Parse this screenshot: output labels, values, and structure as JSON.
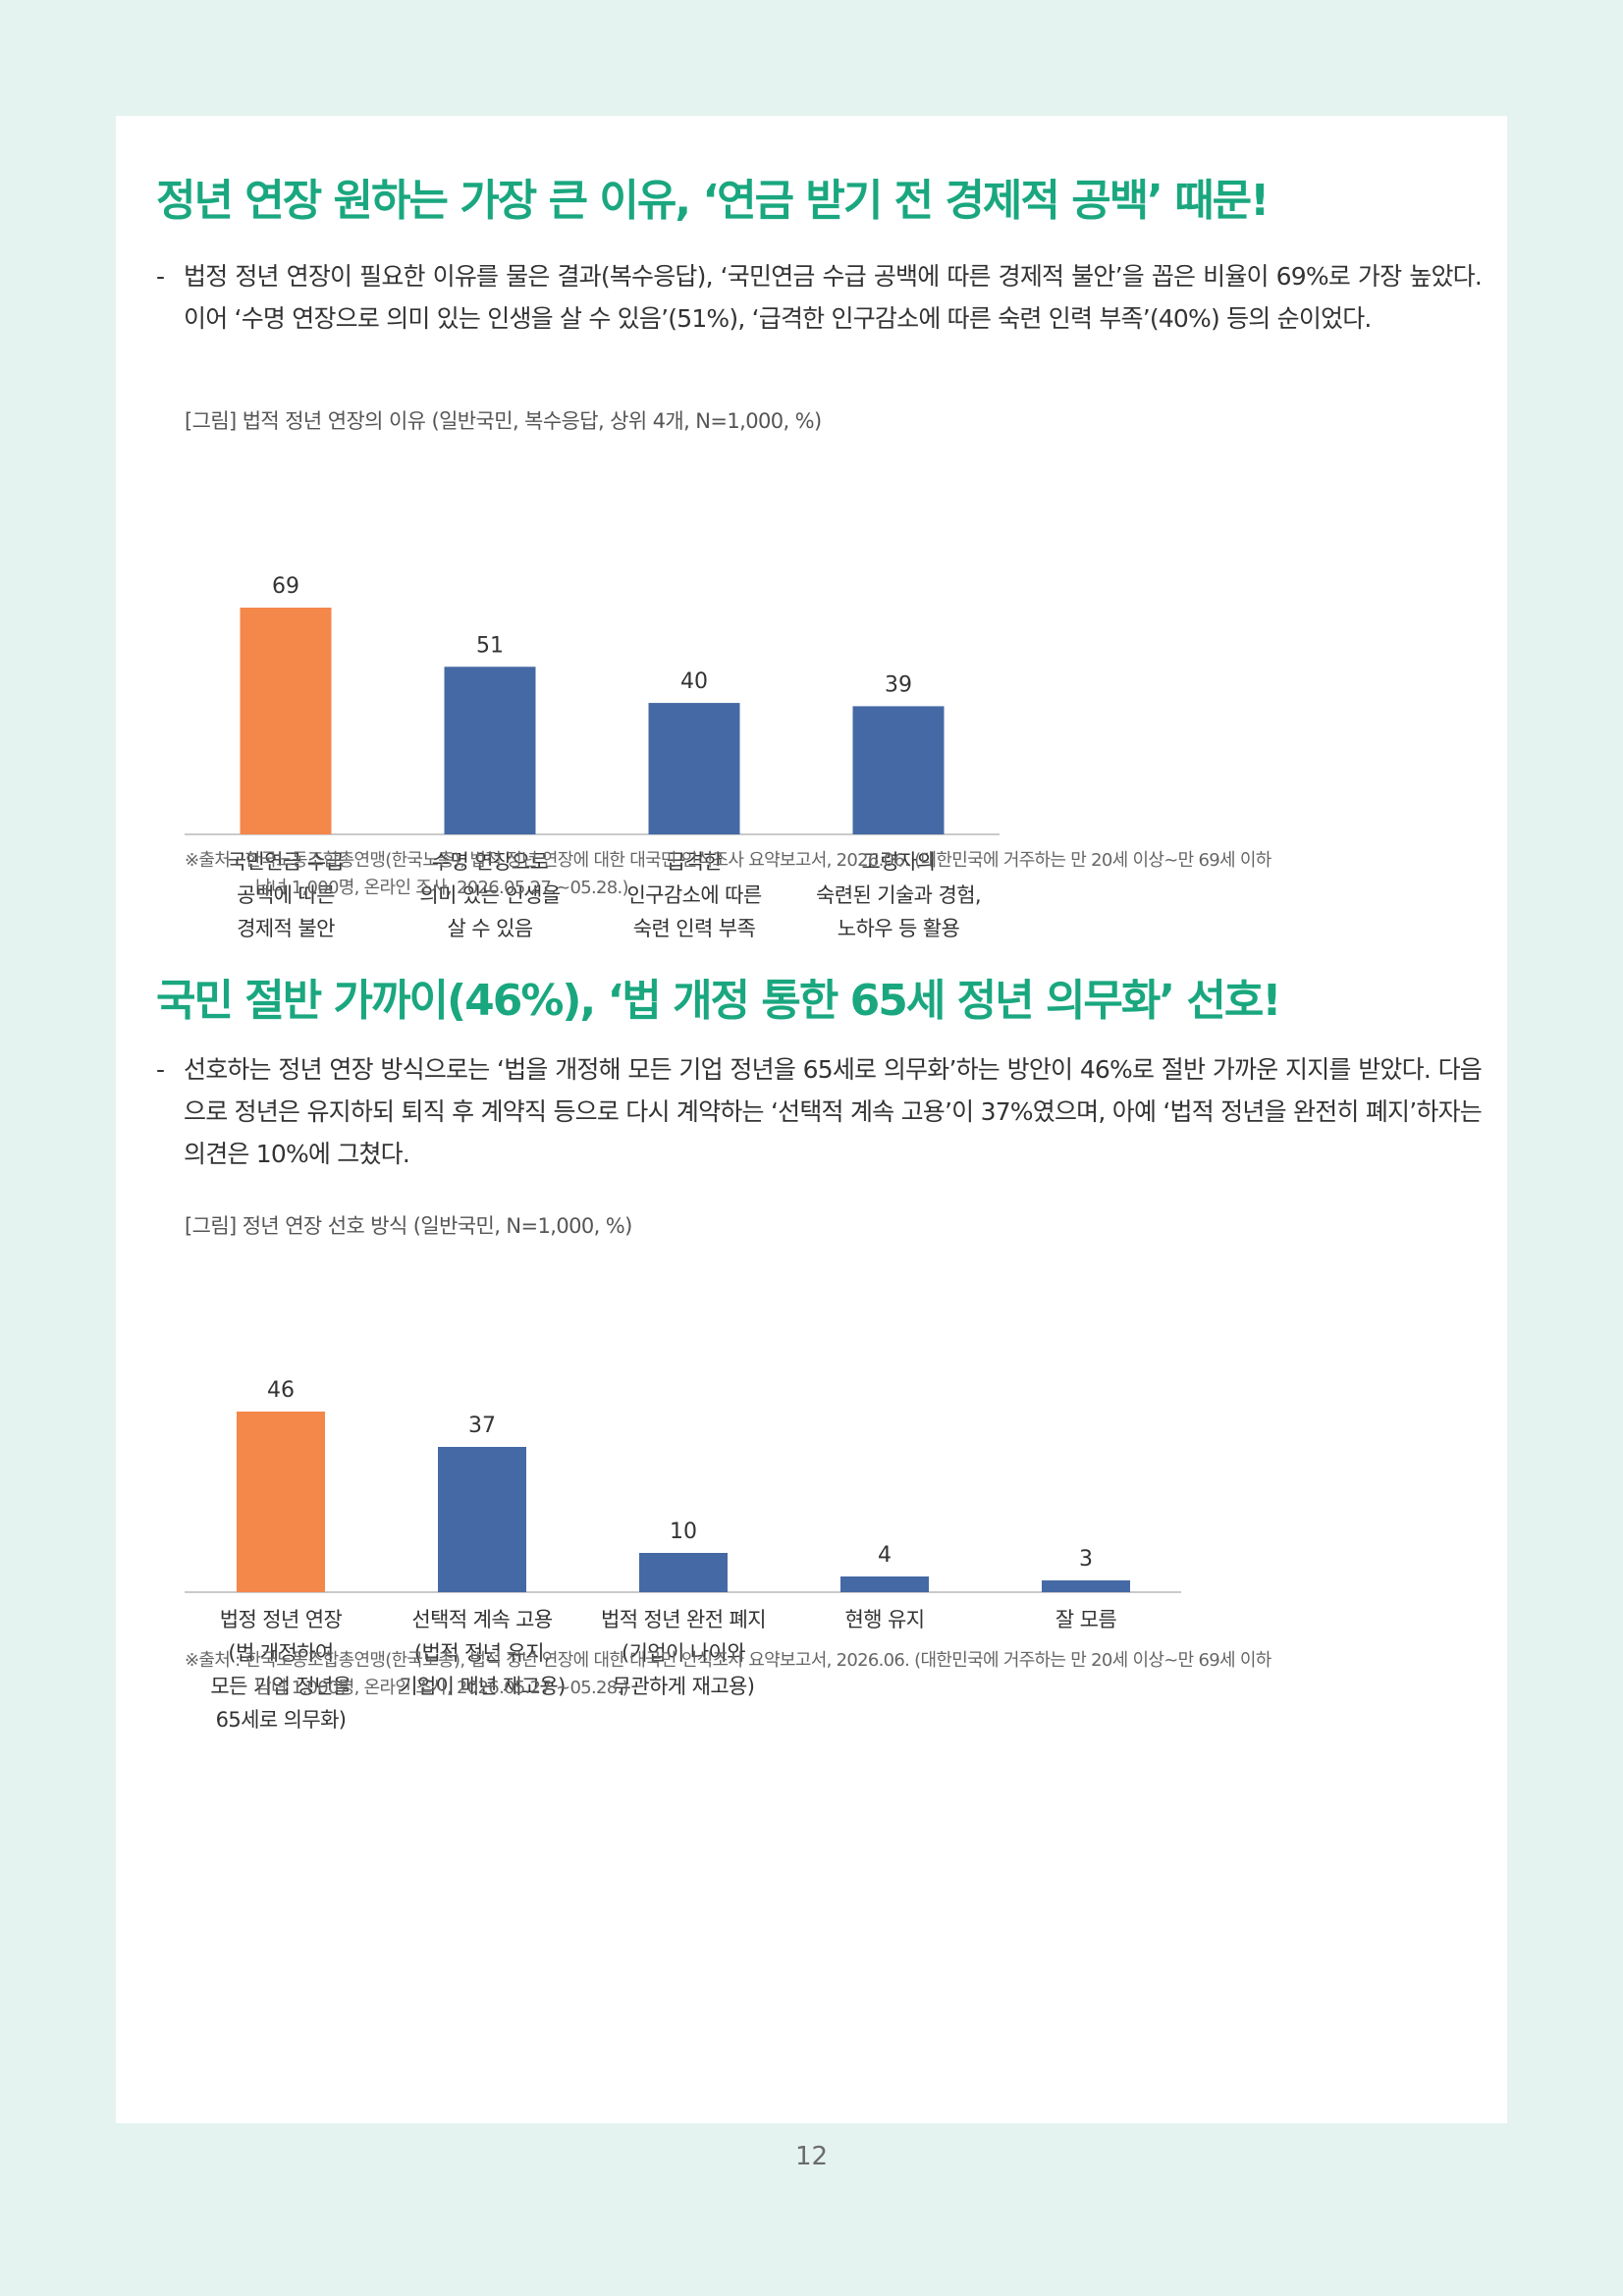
{
  "page_number": "12",
  "section1": {
    "title": "정년 연장 원하는 가장 큰 이유, ‘연금 받기 전 경제적 공백’ 때문!",
    "dash": "-",
    "paragraph": "법정 정년 연장이 필요한 이유를 물은 결과(복수응답), ‘국민연금 수급 공백에 따른 경제적 불안’을 꼽은 비율이 69%로 가장 높았다. 이어 ‘수명 연장으로 의미 있는 인생을 살 수 있음’(51%), ‘급격한 인구감소에 따른 숙련 인력 부족’(40%) 등의 순이었다.",
    "figure_caption": "[그림] 법적 정년 연장의 이유 (일반국민, 복수응답, 상위 4개, N=1,000, %)",
    "source_line1": "※출처 : 한국노동조합총연맹(한국노총), 법적 정년 연장에 대한 대국민 인식조사 요약보고서, 2026.06. (대한민국에 거주하는 만 20세 이상~만 69세 이하",
    "source_line2": "남녀 1,000명, 온라인 조사, 2026.05.27.~05.28.)"
  },
  "section2": {
    "title": "국민 절반 가까이(46%), ‘법 개정 통한 65세 정년 의무화’ 선호!",
    "dash": "-",
    "paragraph": "선호하는 정년 연장 방식으로는 ‘법을 개정해 모든 기업 정년을 65세로 의무화’하는 방안이 46%로 절반 가까운 지지를 받았다. 다음으로 정년은 유지하되 퇴직 후 계약직 등으로 다시 계약하는 ‘선택적 계속 고용’이 37%였으며, 아예 ‘법적 정년을 완전히 폐지’하자는 의견은 10%에 그쳤다.",
    "figure_caption": "[그림] 정년 연장 선호 방식 (일반국민, N=1,000, %)",
    "source_line1": "※출처 : 한국노동조합총연맹(한국노총), 법적 정년 연장에 대한 대국민 인식조사 요약보고서, 2026.06. (대한민국에 거주하는 만 20세 이상~만 69세 이하",
    "source_line2": "남녀 1,000명, 온라인 조사, 2026.05.27.~05.28.)"
  },
  "chart_data": [
    {
      "type": "bar",
      "title": "[그림] 법적 정년 연장의 이유 (일반국민, 복수응답, 상위 4개, N=1,000, %)",
      "categories": [
        [
          "국민연금 수급",
          "공백에 따른",
          "경제적 불안"
        ],
        [
          "수명 연장으로",
          "의미 있는 인생을",
          "살 수 있음"
        ],
        [
          "급격한",
          "인구감소에 따른",
          "숙련 인력 부족"
        ],
        [
          "고령자의",
          "숙련된 기술과 경험,",
          "노하우 등 활용"
        ]
      ],
      "values": [
        69,
        51,
        40,
        39
      ],
      "bar_colors": [
        "#f4874a",
        "#4569a4",
        "#4569a4",
        "#4569a4"
      ],
      "ylim": [
        0,
        69
      ],
      "grid": false,
      "legend": "none"
    },
    {
      "type": "bar",
      "title": "[그림] 정년 연장 선호 방식 (일반국민, N=1,000, %)",
      "categories": [
        [
          "법정 정년 연장",
          "(법 개정하여",
          "모든 기업 정년을",
          "65세로 의무화)"
        ],
        [
          "선택적 계속 고용",
          "(법적 정년 유지,",
          "기업이 매년 재고용)"
        ],
        [
          "법적 정년 완전 폐지",
          "(기업이 나이와",
          "무관하게 재고용)"
        ],
        [
          "현행 유지"
        ],
        [
          "잘 모름"
        ]
      ],
      "values": [
        46,
        37,
        10,
        4,
        3
      ],
      "bar_colors": [
        "#f4874a",
        "#4569a4",
        "#4569a4",
        "#4569a4",
        "#4569a4"
      ],
      "ylim": [
        0,
        46
      ],
      "grid": false,
      "legend": "none"
    }
  ]
}
